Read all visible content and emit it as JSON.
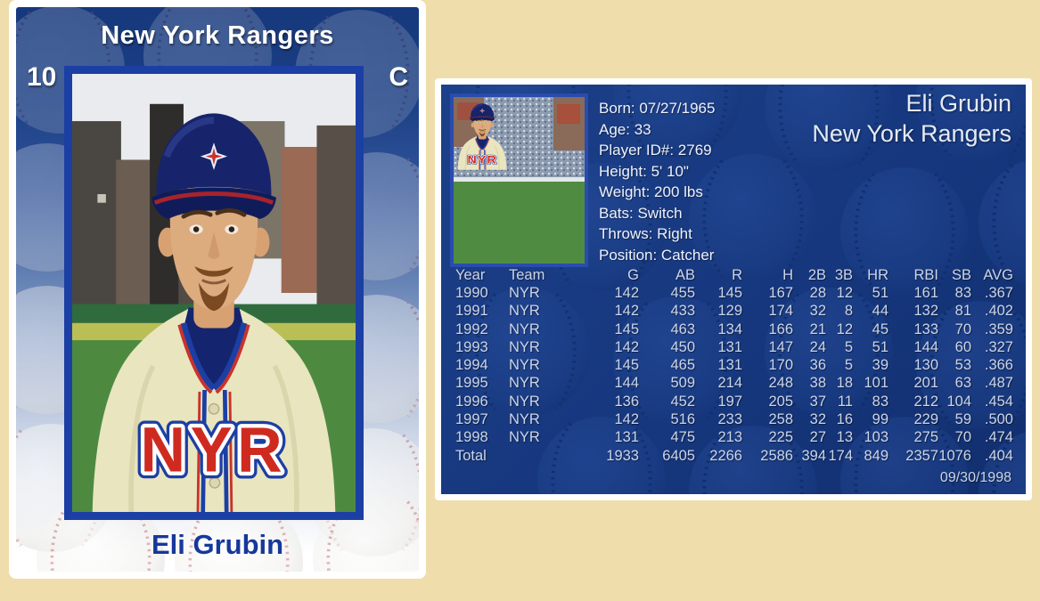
{
  "page": {
    "background_color": "#efddab",
    "card_navy": "#16387c",
    "frame_blue": "#1c3fa4",
    "accent_red": "#cf2a20"
  },
  "player_card": {
    "team": "New York Rangers",
    "number": "10",
    "position_abbr": "C",
    "player_name": "Eli Grubin"
  },
  "stats_card": {
    "header": {
      "player_name": "Eli Grubin",
      "team": "New York Rangers"
    },
    "bio": [
      "Born: 07/27/1965",
      "Age: 33",
      "Player ID#: 2769",
      "Height: 5' 10\"",
      "Weight: 200 lbs",
      "Bats: Switch",
      "Throws: Right",
      "Position: Catcher"
    ],
    "table": {
      "columns": [
        "Year",
        "Team",
        "G",
        "AB",
        "R",
        "H",
        "2B",
        "3B",
        "HR",
        "RBI",
        "SB",
        "AVG"
      ],
      "rows": [
        [
          "1990",
          "NYR",
          "142",
          "455",
          "145",
          "167",
          "28",
          "12",
          "51",
          "161",
          "83",
          ".367"
        ],
        [
          "1991",
          "NYR",
          "142",
          "433",
          "129",
          "174",
          "32",
          "8",
          "44",
          "132",
          "81",
          ".402"
        ],
        [
          "1992",
          "NYR",
          "145",
          "463",
          "134",
          "166",
          "21",
          "12",
          "45",
          "133",
          "70",
          ".359"
        ],
        [
          "1993",
          "NYR",
          "142",
          "450",
          "131",
          "147",
          "24",
          "5",
          "51",
          "144",
          "60",
          ".327"
        ],
        [
          "1994",
          "NYR",
          "145",
          "465",
          "131",
          "170",
          "36",
          "5",
          "39",
          "130",
          "53",
          ".366"
        ],
        [
          "1995",
          "NYR",
          "144",
          "509",
          "214",
          "248",
          "38",
          "18",
          "101",
          "201",
          "63",
          ".487"
        ],
        [
          "1996",
          "NYR",
          "136",
          "452",
          "197",
          "205",
          "37",
          "11",
          "83",
          "212",
          "104",
          ".454"
        ],
        [
          "1997",
          "NYR",
          "142",
          "516",
          "233",
          "258",
          "32",
          "16",
          "99",
          "229",
          "59",
          ".500"
        ],
        [
          "1998",
          "NYR",
          "131",
          "475",
          "213",
          "225",
          "27",
          "13",
          "103",
          "275",
          "70",
          ".474"
        ],
        [
          "Total",
          "",
          "1933",
          "6405",
          "2266",
          "2586",
          "394",
          "174",
          "849",
          "2357",
          "1076",
          ".404"
        ]
      ]
    },
    "footer_date": "09/30/1998"
  }
}
